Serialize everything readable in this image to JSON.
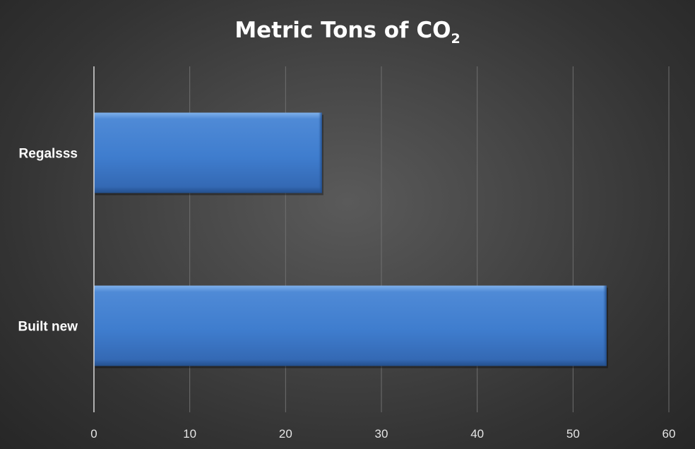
{
  "chart_data": {
    "type": "bar",
    "orientation": "horizontal",
    "title": {
      "main": "Metric Tons of CO",
      "subscript": "2"
    },
    "categories": [
      "Regalsss",
      "Built new"
    ],
    "values": [
      23.8,
      53.5
    ],
    "xlim": [
      0,
      60
    ],
    "xticks": [
      0,
      10,
      20,
      30,
      40,
      50,
      60
    ],
    "grid": true,
    "legend": "none",
    "bar_color": "#4a86d0",
    "xlabel": "",
    "ylabel": ""
  }
}
